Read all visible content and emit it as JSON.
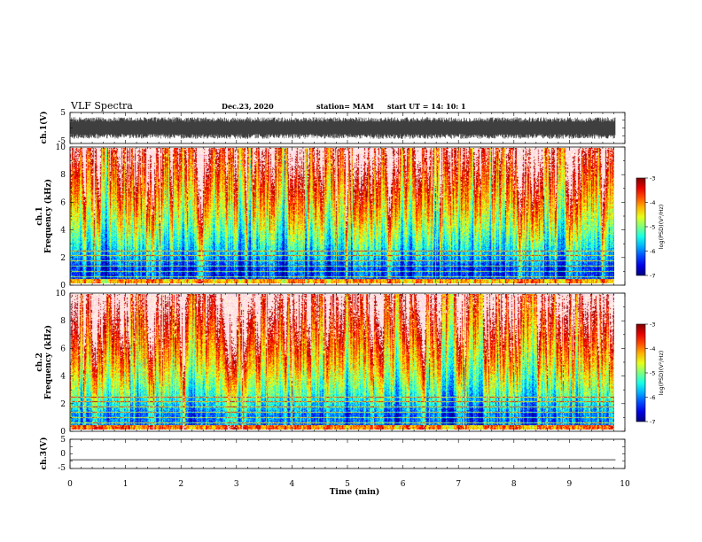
{
  "header": {
    "title": "VLF Spectra",
    "date": "Dec.23, 2020",
    "station": "station= MAM",
    "start": "start  UT  =   14: 10: 1"
  },
  "chart_data": [
    {
      "type": "line",
      "name": "ch1-waveform",
      "ylabel": "ch.1(V)",
      "ylim": [
        -5,
        5
      ],
      "yticks": [
        "5",
        "-5"
      ],
      "xlim": [
        0,
        10
      ],
      "note_amplitude_v": 3.5
    },
    {
      "type": "heatmap",
      "name": "ch1-spectrogram",
      "ylabel_top": "ch.1",
      "ylabel": "Frequency (kHz)",
      "ylim": [
        0,
        10
      ],
      "yticks": [
        "0",
        "2",
        "4",
        "6",
        "8",
        "10"
      ],
      "xlim": [
        0,
        9.83
      ],
      "colorbar": {
        "label": "log(PSD)(V²/Hz)",
        "range": [
          -7,
          -3
        ],
        "ticks": [
          "-3",
          "-4",
          "-5",
          "-6",
          "-7"
        ]
      }
    },
    {
      "type": "heatmap",
      "name": "ch2-spectrogram",
      "ylabel_top": "ch.2",
      "ylabel": "Frequency (kHz)",
      "ylim": [
        0,
        10
      ],
      "yticks": [
        "0",
        "2",
        "4",
        "6",
        "8",
        "10"
      ],
      "xlim": [
        0,
        9.83
      ],
      "colorbar": {
        "label": "log(PSD)(V²/Hz)",
        "range": [
          -7,
          -3
        ],
        "ticks": [
          "-3",
          "-4",
          "-5",
          "-6",
          "-7"
        ]
      }
    },
    {
      "type": "line",
      "name": "ch3-waveform",
      "ylabel": "ch.3(V)",
      "ylim": [
        -5,
        5
      ],
      "yticks": [
        "5",
        "0",
        "-5"
      ],
      "xlim": [
        0,
        10
      ],
      "x": [
        0,
        9.83
      ],
      "y": [
        -2,
        -2
      ]
    }
  ],
  "xaxis": {
    "label": "Time  (min)",
    "ticks": [
      "0",
      "1",
      "2",
      "3",
      "4",
      "5",
      "6",
      "7",
      "8",
      "9",
      "10"
    ],
    "range": [
      0,
      10
    ]
  }
}
